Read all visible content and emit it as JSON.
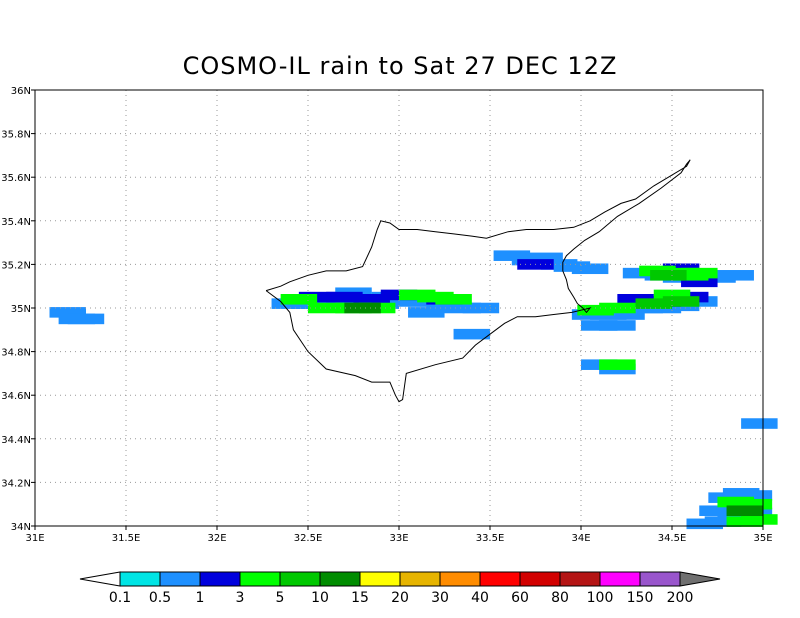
{
  "title": "COSMO-IL rain to Sat 27 DEC 12Z",
  "map": {
    "lon_range": [
      31,
      35
    ],
    "lat_range": [
      34,
      36
    ],
    "lon_ticks": [
      {
        "v": 31,
        "label": "31E"
      },
      {
        "v": 31.5,
        "label": "31.5E"
      },
      {
        "v": 32,
        "label": "32E"
      },
      {
        "v": 32.5,
        "label": "32.5E"
      },
      {
        "v": 33,
        "label": "33E"
      },
      {
        "v": 33.5,
        "label": "33.5E"
      },
      {
        "v": 34,
        "label": "34E"
      },
      {
        "v": 34.5,
        "label": "34.5E"
      },
      {
        "v": 35,
        "label": "35E"
      }
    ],
    "lat_ticks": [
      {
        "v": 34,
        "label": "34N"
      },
      {
        "v": 34.2,
        "label": "34.2N"
      },
      {
        "v": 34.4,
        "label": "34.4N"
      },
      {
        "v": 34.6,
        "label": "34.6N"
      },
      {
        "v": 34.8,
        "label": "34.8N"
      },
      {
        "v": 35,
        "label": "35N"
      },
      {
        "v": 35.2,
        "label": "35.2N"
      },
      {
        "v": 35.4,
        "label": "35.4N"
      },
      {
        "v": 35.6,
        "label": "35.6N"
      },
      {
        "v": 35.8,
        "label": "35.8N"
      },
      {
        "v": 36,
        "label": "36N"
      }
    ],
    "grid": "dotted",
    "coastline": [
      [
        32.27,
        35.08
      ],
      [
        32.35,
        35.03
      ],
      [
        32.4,
        34.98
      ],
      [
        32.42,
        34.9
      ],
      [
        32.5,
        34.8
      ],
      [
        32.6,
        34.72
      ],
      [
        32.76,
        34.69
      ],
      [
        32.85,
        34.66
      ],
      [
        32.95,
        34.66
      ],
      [
        32.98,
        34.6
      ],
      [
        33.0,
        34.57
      ],
      [
        33.02,
        34.58
      ],
      [
        33.04,
        34.7
      ],
      [
        33.2,
        34.74
      ],
      [
        33.35,
        34.77
      ],
      [
        33.42,
        34.83
      ],
      [
        33.5,
        34.88
      ],
      [
        33.58,
        34.93
      ],
      [
        33.65,
        34.96
      ],
      [
        33.75,
        34.96
      ],
      [
        33.85,
        34.97
      ],
      [
        33.95,
        34.98
      ],
      [
        34.0,
        34.99
      ],
      [
        34.05,
        35.0
      ],
      [
        34.03,
        34.98
      ],
      [
        34.01,
        35.0
      ],
      [
        33.98,
        35.02
      ],
      [
        33.96,
        35.05
      ],
      [
        33.93,
        35.09
      ],
      [
        33.92,
        35.13
      ],
      [
        33.9,
        35.17
      ],
      [
        33.9,
        35.21
      ],
      [
        33.92,
        35.24
      ],
      [
        33.96,
        35.27
      ],
      [
        34.02,
        35.31
      ],
      [
        34.1,
        35.35
      ],
      [
        34.2,
        35.42
      ],
      [
        34.32,
        35.48
      ],
      [
        34.44,
        35.55
      ],
      [
        34.55,
        35.62
      ],
      [
        34.58,
        35.66
      ],
      [
        34.6,
        35.68
      ],
      [
        34.58,
        35.65
      ],
      [
        34.44,
        35.58
      ],
      [
        34.4,
        35.56
      ],
      [
        34.3,
        35.5
      ],
      [
        34.22,
        35.48
      ],
      [
        34.13,
        35.44
      ],
      [
        34.05,
        35.4
      ],
      [
        33.96,
        35.37
      ],
      [
        33.85,
        35.36
      ],
      [
        33.7,
        35.36
      ],
      [
        33.6,
        35.35
      ],
      [
        33.48,
        35.32
      ],
      [
        33.4,
        35.33
      ],
      [
        33.3,
        35.34
      ],
      [
        33.2,
        35.35
      ],
      [
        33.1,
        35.36
      ],
      [
        33.0,
        35.36
      ],
      [
        32.95,
        35.39
      ],
      [
        32.9,
        35.4
      ],
      [
        32.88,
        35.36
      ],
      [
        32.85,
        35.28
      ],
      [
        32.8,
        35.19
      ],
      [
        32.71,
        35.17
      ],
      [
        32.6,
        35.17
      ],
      [
        32.5,
        35.15
      ],
      [
        32.4,
        35.12
      ],
      [
        32.35,
        35.1
      ],
      [
        32.27,
        35.08
      ]
    ]
  },
  "rain_patches": [
    {
      "level": 1,
      "cells": [
        [
          31.18,
          34.98
        ],
        [
          31.23,
          34.95
        ],
        [
          31.28,
          34.95
        ]
      ]
    },
    {
      "level": 1,
      "cells": [
        [
          32.4,
          35.02
        ],
        [
          32.5,
          35.02
        ],
        [
          32.6,
          35.03
        ],
        [
          32.7,
          35.02
        ],
        [
          32.8,
          35.02
        ],
        [
          32.9,
          35.02
        ],
        [
          32.95,
          35.05
        ],
        [
          33.05,
          35.03
        ],
        [
          33.15,
          35.03
        ],
        [
          33.25,
          35.02
        ],
        [
          33.35,
          35.0
        ],
        [
          33.45,
          35.0
        ],
        [
          32.75,
          35.07
        ],
        [
          33.15,
          34.98
        ],
        [
          33.4,
          34.88
        ]
      ]
    },
    {
      "level": 2,
      "cells": [
        [
          32.55,
          35.05
        ],
        [
          32.7,
          35.05
        ],
        [
          32.85,
          35.04
        ],
        [
          33.0,
          35.06
        ],
        [
          33.25,
          35.04
        ]
      ]
    },
    {
      "level": 3,
      "cells": [
        [
          32.45,
          35.04
        ],
        [
          32.6,
          35.0
        ],
        [
          32.75,
          35.0
        ],
        [
          32.88,
          35.0
        ],
        [
          33.1,
          35.06
        ],
        [
          33.2,
          35.05
        ],
        [
          33.3,
          35.04
        ]
      ]
    },
    {
      "level": 5,
      "cells": [
        [
          32.8,
          35.0
        ]
      ]
    },
    {
      "level": 1,
      "cells": [
        [
          33.62,
          35.24
        ],
        [
          33.72,
          35.22
        ],
        [
          33.8,
          35.23
        ],
        [
          33.88,
          35.2
        ],
        [
          33.95,
          35.19
        ],
        [
          34.05,
          35.18
        ]
      ]
    },
    {
      "level": 2,
      "cells": [
        [
          33.75,
          35.2
        ]
      ]
    },
    {
      "level": 1,
      "cells": [
        [
          34.05,
          34.97
        ],
        [
          34.15,
          34.97
        ],
        [
          34.25,
          34.97
        ],
        [
          34.35,
          35.0
        ],
        [
          34.45,
          35.0
        ],
        [
          34.55,
          35.01
        ],
        [
          34.65,
          35.03
        ],
        [
          34.1,
          34.92
        ],
        [
          34.2,
          34.92
        ],
        [
          34.33,
          35.16
        ],
        [
          34.45,
          35.15
        ],
        [
          34.55,
          35.14
        ],
        [
          34.65,
          35.15
        ],
        [
          34.75,
          35.14
        ],
        [
          34.85,
          35.15
        ]
      ]
    },
    {
      "level": 2,
      "cells": [
        [
          34.3,
          35.04
        ],
        [
          34.45,
          35.03
        ],
        [
          34.6,
          35.05
        ],
        [
          34.55,
          35.18
        ],
        [
          34.65,
          35.12
        ]
      ]
    },
    {
      "level": 3,
      "cells": [
        [
          34.08,
          34.99
        ],
        [
          34.2,
          35.0
        ],
        [
          34.5,
          35.06
        ],
        [
          34.42,
          35.17
        ],
        [
          34.55,
          35.16
        ],
        [
          34.6,
          35.15
        ],
        [
          34.65,
          35.16
        ]
      ]
    },
    {
      "level": 4,
      "cells": [
        [
          34.4,
          35.02
        ],
        [
          34.55,
          35.03
        ],
        [
          34.48,
          35.15
        ]
      ]
    },
    {
      "level": 1,
      "cells": [
        [
          34.1,
          34.74
        ],
        [
          34.2,
          34.72
        ],
        [
          34.98,
          34.47
        ],
        [
          34.8,
          34.13
        ],
        [
          34.88,
          34.15
        ],
        [
          34.95,
          34.14
        ],
        [
          34.75,
          34.07
        ],
        [
          34.85,
          34.05
        ],
        [
          34.95,
          34.06
        ],
        [
          34.68,
          34.01
        ],
        [
          34.78,
          34.02
        ]
      ]
    },
    {
      "level": 3,
      "cells": [
        [
          34.2,
          34.74
        ],
        [
          34.85,
          34.11
        ],
        [
          34.95,
          34.1
        ],
        [
          34.9,
          34.02
        ],
        [
          34.98,
          34.03
        ]
      ]
    },
    {
      "level": 5,
      "cells": [
        [
          34.9,
          34.07
        ]
      ]
    }
  ],
  "colorbar": {
    "levels": [
      {
        "color": "#00e5e5",
        "label": "0.1"
      },
      {
        "color": "#1e90ff",
        "label": "0.5"
      },
      {
        "color": "#0000dd",
        "label": "1"
      },
      {
        "color": "#00ff00",
        "label": "3"
      },
      {
        "color": "#00c800",
        "label": "5"
      },
      {
        "color": "#008c00",
        "label": "10"
      },
      {
        "color": "#ffff00",
        "label": "15"
      },
      {
        "color": "#e6b400",
        "label": "20"
      },
      {
        "color": "#ff8c00",
        "label": "30"
      },
      {
        "color": "#ff0000",
        "label": "40"
      },
      {
        "color": "#d20000",
        "label": "60"
      },
      {
        "color": "#b41414",
        "label": "80"
      },
      {
        "color": "#ff00ff",
        "label": "100"
      },
      {
        "color": "#9955cc",
        "label": "150"
      },
      {
        "color": "#707070",
        "label": "200"
      }
    ],
    "under_color": "#ffffff"
  }
}
